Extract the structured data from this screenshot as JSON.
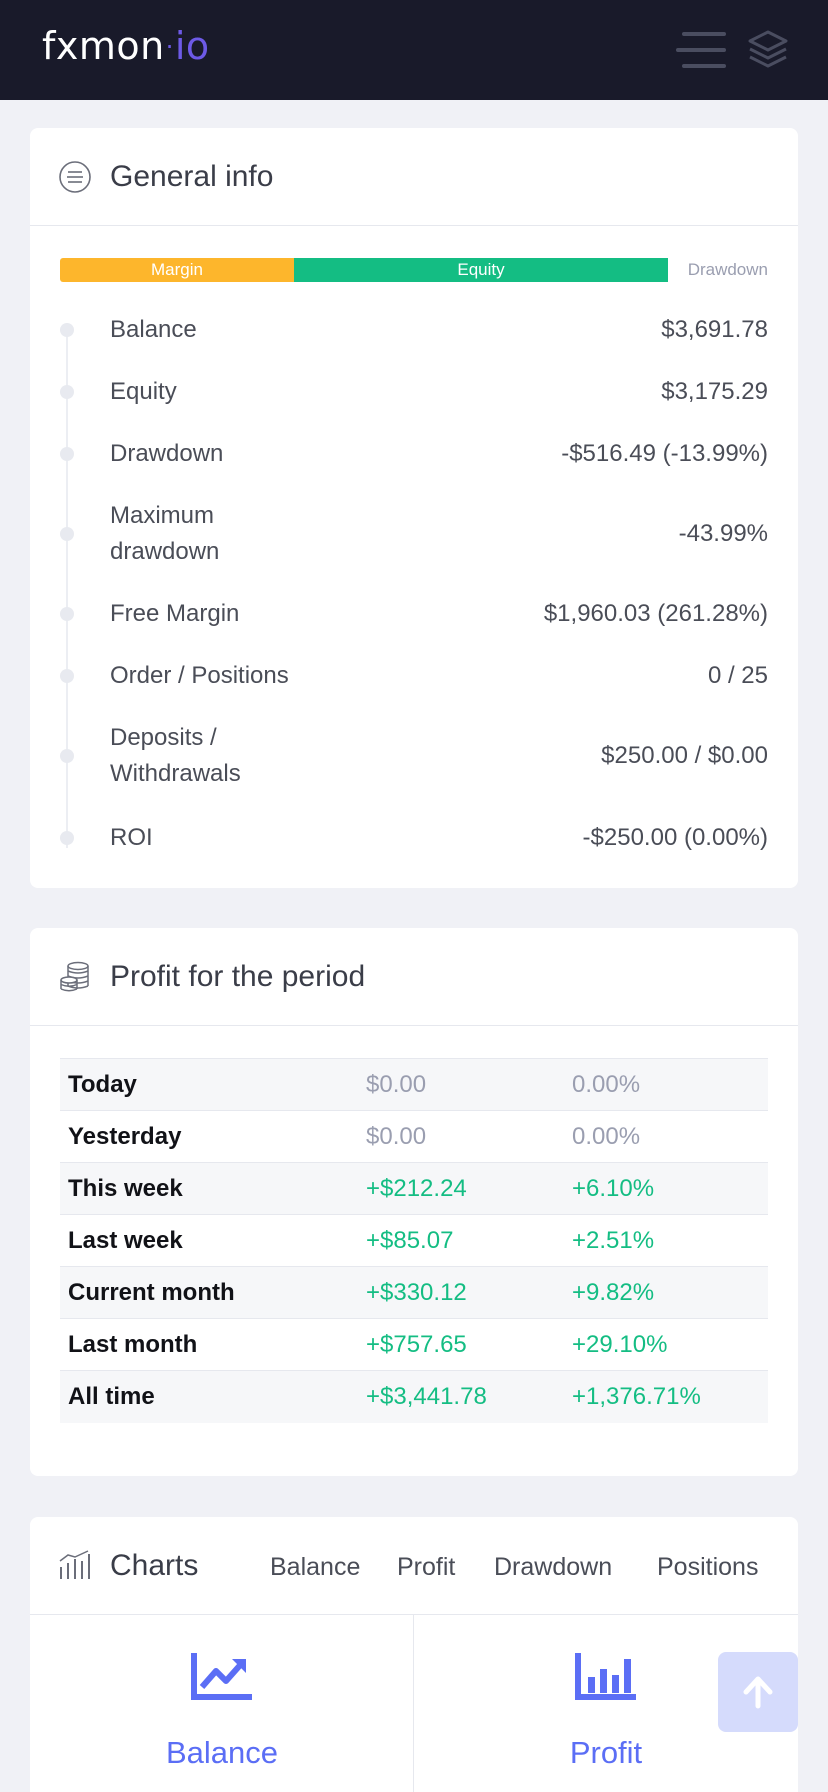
{
  "header": {
    "logo_main": "fxmon",
    "logo_dot": "·",
    "logo_tld": "io",
    "menu_icon": "hamburger-icon",
    "layers_icon": "layers-icon"
  },
  "general": {
    "title": "General info",
    "icon": "list-circle-icon",
    "bar": {
      "margin": "Margin",
      "equity": "Equity",
      "drawdown": "Drawdown"
    },
    "rows": [
      {
        "label": "Balance",
        "value": "$3,691.78"
      },
      {
        "label": "Equity",
        "value": "$3,175.29"
      },
      {
        "label": "Drawdown",
        "value": "-$516.49 (-13.99%)"
      },
      {
        "label": "Maximum drawdown",
        "value": "-43.99%"
      },
      {
        "label": "Free Margin",
        "value": "$1,960.03 (261.28%)"
      },
      {
        "label": "Order / Positions",
        "value": "0 / 25"
      },
      {
        "label": "Deposits / Withdrawals",
        "value": "$250.00 / $0.00"
      },
      {
        "label": "ROI",
        "value": "-$250.00 (0.00%)"
      }
    ]
  },
  "profit": {
    "title": "Profit for the period",
    "icon": "coins-icon",
    "rows": [
      {
        "label": "Today",
        "amount": "$0.00",
        "percent": "0.00%"
      },
      {
        "label": "Yesterday",
        "amount": "$0.00",
        "percent": "0.00%"
      },
      {
        "label": "This week",
        "amount": "+$212.24",
        "percent": "+6.10%"
      },
      {
        "label": "Last week",
        "amount": "+$85.07",
        "percent": "+2.51%"
      },
      {
        "label": "Current month",
        "amount": "+$330.12",
        "percent": "+9.82%"
      },
      {
        "label": "Last month",
        "amount": "+$757.65",
        "percent": "+29.10%"
      },
      {
        "label": "All time",
        "amount": "+$3,441.78",
        "percent": "+1,376.71%"
      }
    ]
  },
  "charts": {
    "title": "Charts",
    "icon": "bar-chart-icon",
    "tabs": [
      "Balance",
      "Profit",
      "Drawdown",
      "Positions"
    ],
    "tiles": [
      {
        "label": "Balance",
        "icon": "trending-up-chart-icon"
      },
      {
        "label": "Profit",
        "icon": "bar-graph-icon"
      }
    ]
  },
  "scroll_top_icon": "arrow-up-icon",
  "colors": {
    "topbar": "#191a2a",
    "margin": "#fdb62c",
    "equity": "#14bd83",
    "positive": "#14bd83",
    "accent": "#5b6ef5"
  }
}
